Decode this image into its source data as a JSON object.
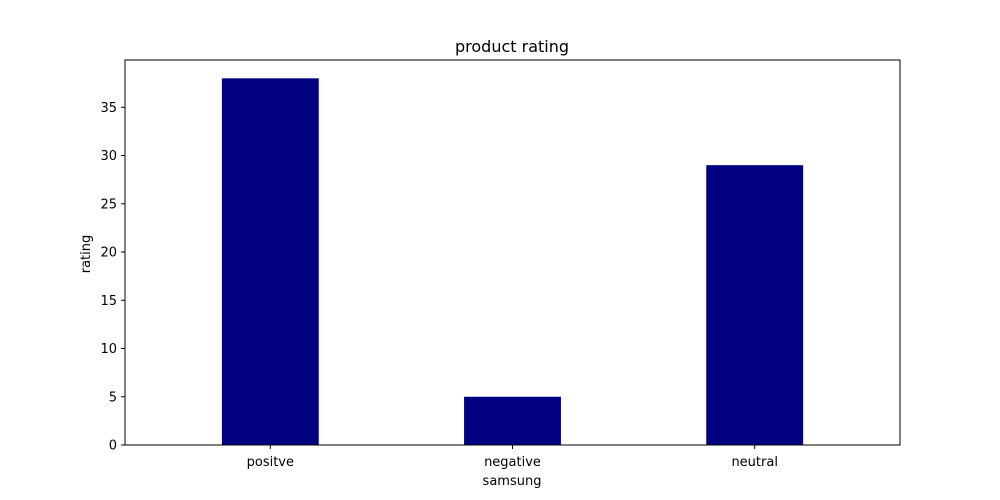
{
  "chart_data": {
    "type": "bar",
    "title": "product rating",
    "xlabel": "samsung",
    "ylabel": "rating",
    "categories": [
      "positve",
      "negative",
      "neutral"
    ],
    "values": [
      38,
      5,
      29
    ],
    "ylim": [
      0,
      39.9
    ],
    "yticks": [
      0,
      5,
      10,
      15,
      20,
      25,
      30,
      35
    ],
    "grid": false,
    "legend": "none",
    "bar_color": "#000080"
  }
}
